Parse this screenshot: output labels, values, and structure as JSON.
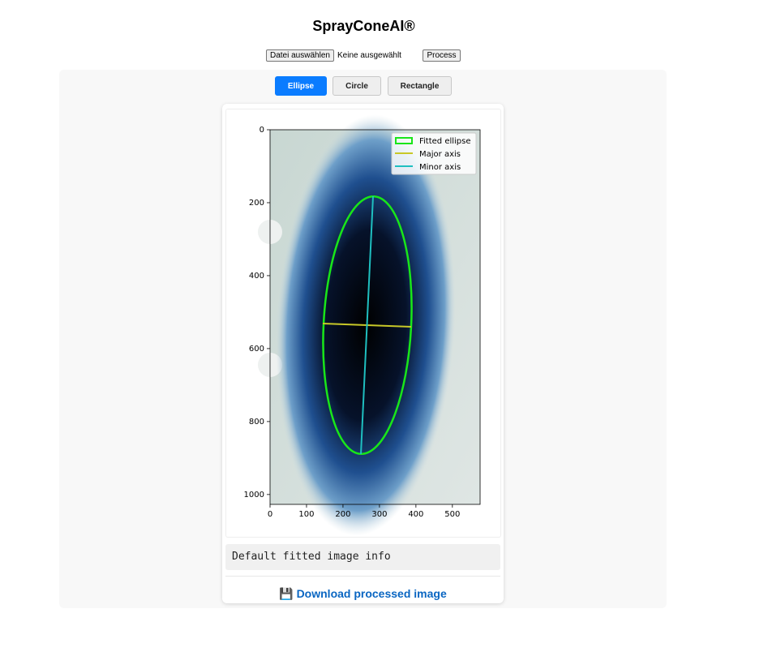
{
  "header": {
    "title": "SprayConeAI®"
  },
  "file_input": {
    "button": "Datei auswählen",
    "status": "Keine ausgewählt"
  },
  "process_button": "Process",
  "tabs": [
    "Ellipse",
    "Circle",
    "Rectangle"
  ],
  "active_tab": 0,
  "plot": {
    "xlim": [
      0,
      576
    ],
    "ylim": [
      1027,
      0
    ],
    "xticks": [
      0,
      100,
      200,
      300,
      400,
      500
    ],
    "yticks": [
      0,
      200,
      400,
      600,
      800,
      1000
    ],
    "legend": [
      "Fitted ellipse",
      "Major axis",
      "Minor axis"
    ]
  },
  "info": "Default fitted image info",
  "download": "💾 Download processed image"
}
